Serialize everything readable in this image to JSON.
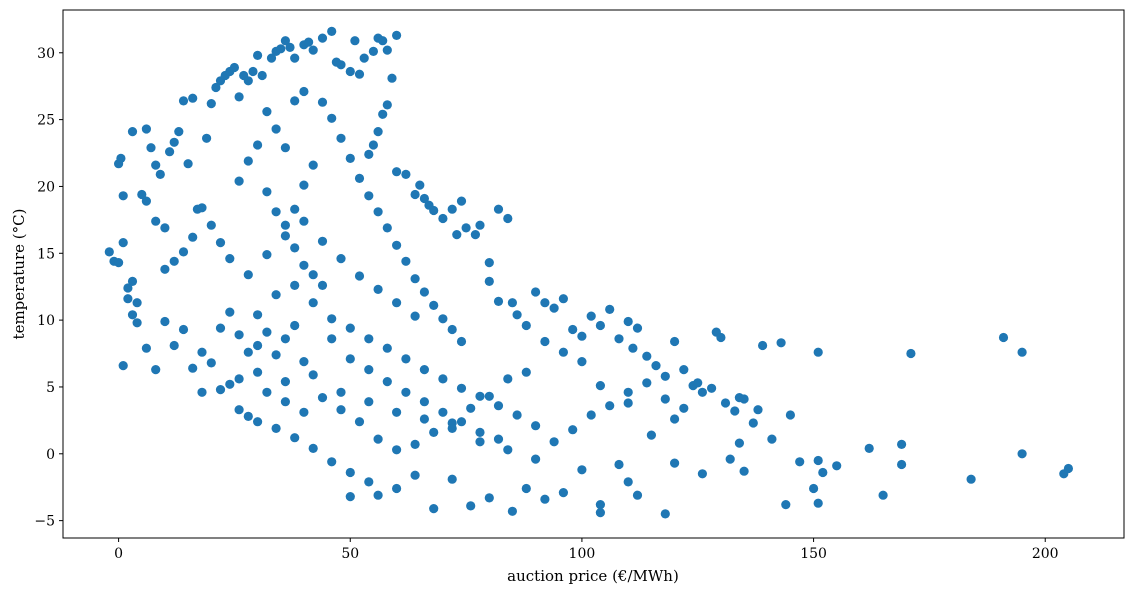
{
  "chart_data": {
    "type": "scatter",
    "title": "",
    "xlabel": "auction price (€/MWh)",
    "ylabel": "temperature (°C)",
    "xlim": [
      -12,
      217
    ],
    "ylim": [
      -6.3,
      33.2
    ],
    "xticks": [
      0,
      50,
      100,
      150,
      200
    ],
    "yticks": [
      -5,
      0,
      5,
      10,
      15,
      20,
      25,
      30
    ],
    "grid": false,
    "marker_color": "#1f77b4",
    "series": [
      {
        "points": [
          [
            -2,
            15.1
          ],
          [
            -1,
            14.4
          ],
          [
            0,
            14.3
          ],
          [
            1,
            15.8
          ],
          [
            1,
            19.3
          ],
          [
            0,
            21.7
          ],
          [
            0.5,
            22.1
          ],
          [
            1,
            6.6
          ],
          [
            2,
            11.6
          ],
          [
            3,
            24.1
          ],
          [
            3,
            12.9
          ],
          [
            3,
            10.4
          ],
          [
            4,
            9.8
          ],
          [
            5,
            19.4
          ],
          [
            6,
            24.3
          ],
          [
            7,
            22.9
          ],
          [
            8,
            21.6
          ],
          [
            9,
            20.9
          ],
          [
            10,
            13.8
          ],
          [
            11,
            22.6
          ],
          [
            12,
            23.3
          ],
          [
            13,
            24.1
          ],
          [
            14,
            26.4
          ],
          [
            15,
            21.7
          ],
          [
            16,
            26.6
          ],
          [
            17,
            18.3
          ],
          [
            19,
            23.6
          ],
          [
            20,
            26.2
          ],
          [
            21,
            27.4
          ],
          [
            22,
            27.9
          ],
          [
            23,
            28.3
          ],
          [
            24,
            28.6
          ],
          [
            25,
            28.9
          ],
          [
            26,
            26.7
          ],
          [
            27,
            28.3
          ],
          [
            28,
            27.9
          ],
          [
            29,
            28.6
          ],
          [
            30,
            29.8
          ],
          [
            31,
            28.3
          ],
          [
            33,
            29.6
          ],
          [
            34,
            30.1
          ],
          [
            35,
            30.3
          ],
          [
            36,
            30.9
          ],
          [
            37,
            30.4
          ],
          [
            38,
            29.6
          ],
          [
            40,
            30.6
          ],
          [
            41,
            30.8
          ],
          [
            42,
            30.2
          ],
          [
            44,
            31.1
          ],
          [
            46,
            31.6
          ],
          [
            47,
            29.3
          ],
          [
            48,
            29.1
          ],
          [
            50,
            28.6
          ],
          [
            51,
            30.9
          ],
          [
            52,
            28.4
          ],
          [
            53,
            29.6
          ],
          [
            55,
            30.1
          ],
          [
            56,
            31.1
          ],
          [
            57,
            30.9
          ],
          [
            58,
            30.2
          ],
          [
            59,
            28.1
          ],
          [
            60,
            31.3
          ],
          [
            58,
            26.1
          ],
          [
            57,
            25.4
          ],
          [
            56,
            24.1
          ],
          [
            55,
            23.1
          ],
          [
            54,
            22.4
          ],
          [
            60,
            21.1
          ],
          [
            62,
            20.9
          ],
          [
            64,
            19.4
          ],
          [
            65,
            20.1
          ],
          [
            66,
            19.1
          ],
          [
            67,
            18.6
          ],
          [
            68,
            18.2
          ],
          [
            70,
            17.6
          ],
          [
            72,
            18.3
          ],
          [
            73,
            16.4
          ],
          [
            74,
            18.9
          ],
          [
            75,
            16.9
          ],
          [
            77,
            16.4
          ],
          [
            78,
            17.1
          ],
          [
            80,
            14.3
          ],
          [
            82,
            18.3
          ],
          [
            84,
            17.6
          ],
          [
            80,
            12.9
          ],
          [
            82,
            11.4
          ],
          [
            85,
            11.3
          ],
          [
            86,
            10.4
          ],
          [
            88,
            9.6
          ],
          [
            90,
            12.1
          ],
          [
            92,
            11.3
          ],
          [
            94,
            10.9
          ],
          [
            96,
            11.6
          ],
          [
            98,
            9.3
          ],
          [
            100,
            8.8
          ],
          [
            102,
            10.3
          ],
          [
            104,
            9.6
          ],
          [
            106,
            10.8
          ],
          [
            108,
            8.6
          ],
          [
            110,
            9.9
          ],
          [
            111,
            7.9
          ],
          [
            112,
            9.4
          ],
          [
            114,
            7.3
          ],
          [
            116,
            6.6
          ],
          [
            118,
            5.8
          ],
          [
            120,
            8.4
          ],
          [
            122,
            6.3
          ],
          [
            124,
            5.1
          ],
          [
            125,
            5.3
          ],
          [
            126,
            4.6
          ],
          [
            128,
            4.9
          ],
          [
            129,
            9.1
          ],
          [
            130,
            8.7
          ],
          [
            131,
            3.8
          ],
          [
            133,
            3.2
          ],
          [
            134,
            4.2
          ],
          [
            135,
            4.1
          ],
          [
            137,
            2.3
          ],
          [
            138,
            3.3
          ],
          [
            139,
            8.1
          ],
          [
            141,
            1.1
          ],
          [
            143,
            8.3
          ],
          [
            145,
            2.9
          ],
          [
            147,
            -0.6
          ],
          [
            151,
            7.6
          ],
          [
            150,
            -2.6
          ],
          [
            151,
            -0.5
          ],
          [
            152,
            -1.4
          ],
          [
            151,
            -3.7
          ],
          [
            144,
            -3.8
          ],
          [
            155,
            -0.9
          ],
          [
            162,
            0.4
          ],
          [
            165,
            -3.1
          ],
          [
            169,
            -0.8
          ],
          [
            169,
            0.7
          ],
          [
            171,
            7.5
          ],
          [
            184,
            -1.9
          ],
          [
            191,
            8.7
          ],
          [
            195,
            7.6
          ],
          [
            195,
            0.0
          ],
          [
            204,
            -1.5
          ],
          [
            205,
            -1.1
          ],
          [
            118,
            -4.5
          ],
          [
            104,
            -4.4
          ],
          [
            104,
            -3.8
          ],
          [
            110,
            -2.1
          ],
          [
            112,
            -3.1
          ],
          [
            85,
            -4.3
          ],
          [
            76,
            -3.9
          ],
          [
            68,
            -4.1
          ],
          [
            56,
            -3.1
          ],
          [
            50,
            -3.2
          ],
          [
            60,
            -2.6
          ],
          [
            64,
            -1.6
          ],
          [
            72,
            -1.9
          ],
          [
            80,
            -3.3
          ],
          [
            88,
            -2.6
          ],
          [
            92,
            -3.4
          ],
          [
            96,
            -2.9
          ],
          [
            100,
            -1.2
          ],
          [
            108,
            -0.8
          ],
          [
            115,
            1.4
          ],
          [
            120,
            -0.7
          ],
          [
            126,
            -1.5
          ],
          [
            132,
            -0.4
          ],
          [
            135,
            -1.3
          ],
          [
            134,
            0.8
          ],
          [
            120,
            2.6
          ],
          [
            110,
            3.8
          ],
          [
            104,
            5.1
          ],
          [
            100,
            6.9
          ],
          [
            96,
            7.6
          ],
          [
            92,
            8.4
          ],
          [
            88,
            6.1
          ],
          [
            84,
            5.6
          ],
          [
            80,
            4.3
          ],
          [
            76,
            3.4
          ],
          [
            72,
            2.3
          ],
          [
            68,
            1.6
          ],
          [
            64,
            0.7
          ],
          [
            60,
            0.3
          ],
          [
            56,
            1.1
          ],
          [
            52,
            2.4
          ],
          [
            48,
            3.3
          ],
          [
            44,
            4.2
          ],
          [
            40,
            3.1
          ],
          [
            36,
            3.9
          ],
          [
            32,
            4.6
          ],
          [
            28,
            2.8
          ],
          [
            24,
            5.2
          ],
          [
            20,
            6.8
          ],
          [
            18,
            7.6
          ],
          [
            16,
            6.4
          ],
          [
            14,
            9.3
          ],
          [
            12,
            8.1
          ],
          [
            10,
            9.9
          ],
          [
            8,
            6.3
          ],
          [
            6,
            7.9
          ],
          [
            4,
            11.3
          ],
          [
            2,
            12.4
          ],
          [
            18,
            4.6
          ],
          [
            22,
            4.8
          ],
          [
            26,
            3.3
          ],
          [
            30,
            2.4
          ],
          [
            34,
            1.9
          ],
          [
            38,
            1.2
          ],
          [
            42,
            0.4
          ],
          [
            46,
            -0.6
          ],
          [
            50,
            -1.4
          ],
          [
            54,
            -2.1
          ],
          [
            26,
            5.6
          ],
          [
            30,
            6.1
          ],
          [
            36,
            5.4
          ],
          [
            42,
            5.9
          ],
          [
            48,
            4.6
          ],
          [
            54,
            3.9
          ],
          [
            60,
            3.1
          ],
          [
            66,
            2.6
          ],
          [
            72,
            1.9
          ],
          [
            78,
            0.9
          ],
          [
            84,
            0.3
          ],
          [
            90,
            -0.4
          ],
          [
            94,
            0.9
          ],
          [
            98,
            1.8
          ],
          [
            102,
            2.9
          ],
          [
            106,
            3.6
          ],
          [
            110,
            4.6
          ],
          [
            114,
            5.3
          ],
          [
            118,
            4.1
          ],
          [
            122,
            3.4
          ],
          [
            30,
            10.4
          ],
          [
            34,
            11.9
          ],
          [
            38,
            12.6
          ],
          [
            42,
            11.3
          ],
          [
            46,
            10.1
          ],
          [
            50,
            9.4
          ],
          [
            54,
            8.6
          ],
          [
            58,
            7.9
          ],
          [
            62,
            7.1
          ],
          [
            66,
            6.3
          ],
          [
            70,
            5.6
          ],
          [
            74,
            4.9
          ],
          [
            78,
            4.3
          ],
          [
            82,
            3.6
          ],
          [
            86,
            2.9
          ],
          [
            90,
            2.1
          ],
          [
            38,
            18.3
          ],
          [
            40,
            20.1
          ],
          [
            42,
            21.6
          ],
          [
            36,
            22.9
          ],
          [
            34,
            24.3
          ],
          [
            32,
            25.6
          ],
          [
            38,
            26.4
          ],
          [
            40,
            27.1
          ],
          [
            44,
            26.3
          ],
          [
            46,
            25.1
          ],
          [
            48,
            23.6
          ],
          [
            50,
            22.1
          ],
          [
            52,
            20.6
          ],
          [
            54,
            19.3
          ],
          [
            56,
            18.1
          ],
          [
            58,
            16.9
          ],
          [
            60,
            15.6
          ],
          [
            62,
            14.4
          ],
          [
            64,
            13.1
          ],
          [
            66,
            12.1
          ],
          [
            68,
            11.1
          ],
          [
            70,
            10.1
          ],
          [
            72,
            9.3
          ],
          [
            74,
            8.4
          ],
          [
            24,
            14.6
          ],
          [
            22,
            15.8
          ],
          [
            20,
            17.1
          ],
          [
            18,
            18.4
          ],
          [
            16,
            16.2
          ],
          [
            14,
            15.1
          ],
          [
            12,
            14.4
          ],
          [
            10,
            16.9
          ],
          [
            8,
            17.4
          ],
          [
            6,
            18.9
          ],
          [
            28,
            13.4
          ],
          [
            32,
            14.9
          ],
          [
            36,
            16.3
          ],
          [
            40,
            17.4
          ],
          [
            44,
            15.9
          ],
          [
            48,
            14.6
          ],
          [
            52,
            13.3
          ],
          [
            56,
            12.3
          ],
          [
            60,
            11.3
          ],
          [
            64,
            10.3
          ],
          [
            26,
            20.4
          ],
          [
            28,
            21.9
          ],
          [
            30,
            23.1
          ],
          [
            32,
            19.6
          ],
          [
            34,
            18.1
          ],
          [
            36,
            17.1
          ],
          [
            38,
            15.4
          ],
          [
            40,
            14.1
          ],
          [
            42,
            13.4
          ],
          [
            44,
            12.6
          ],
          [
            46,
            8.6
          ],
          [
            50,
            7.1
          ],
          [
            54,
            6.3
          ],
          [
            58,
            5.4
          ],
          [
            62,
            4.6
          ],
          [
            66,
            3.9
          ],
          [
            70,
            3.1
          ],
          [
            74,
            2.4
          ],
          [
            78,
            1.6
          ],
          [
            82,
            1.1
          ],
          [
            22,
            9.4
          ],
          [
            24,
            10.6
          ],
          [
            26,
            8.9
          ],
          [
            28,
            7.6
          ],
          [
            30,
            8.1
          ],
          [
            32,
            9.1
          ],
          [
            34,
            7.4
          ],
          [
            36,
            8.6
          ],
          [
            38,
            9.6
          ],
          [
            40,
            6.9
          ]
        ]
      }
    ]
  }
}
